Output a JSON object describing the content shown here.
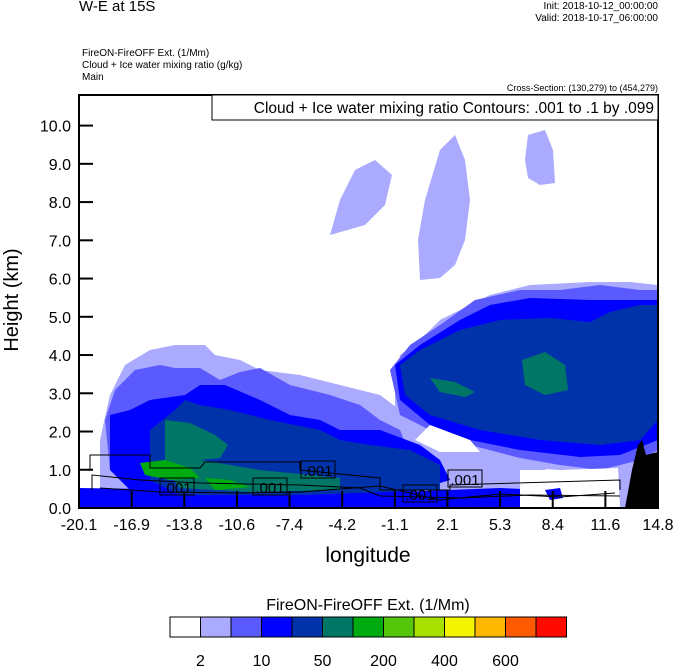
{
  "header": {
    "title": "W-E at 15S",
    "init": "Init: 2018-10-12_00:00:00",
    "valid": "Valid: 2018-10-17_06:00:00",
    "subtitle_lines": [
      "FireON-FireOFF Ext.   (1/Mm)",
      "Cloud + Ice water mixing ratio   (g/kg)",
      "Main"
    ],
    "cross_section": "Cross-Section: (130,279) to (454,279)"
  },
  "chart_data": {
    "type": "heatmap",
    "title": "W-E at 15S",
    "xlabel": "longitude",
    "ylabel": "Height (km)",
    "xlim": [
      -20.1,
      14.8
    ],
    "ylim": [
      0,
      10.8
    ],
    "x_ticks": [
      "-20.1",
      "-16.9",
      "-13.8",
      "-10.6",
      "-7.4",
      "-4.2",
      "-1.1",
      "2.1",
      "5.3",
      "8.4",
      "11.6",
      "14.8"
    ],
    "y_ticks": [
      "0.0",
      "1.0",
      "2.0",
      "3.0",
      "4.0",
      "5.0",
      "6.0",
      "7.0",
      "8.0",
      "9.0",
      "10.0"
    ],
    "contour_info": "Cloud + Ice water mixing ratio Contours: .001 to .1 by .099",
    "contour_labels": [
      ".001",
      ".001",
      ".001",
      ".001",
      ".001"
    ],
    "colorbar": {
      "title": "FireON-FireOFF Ext.  (1/Mm)",
      "labels": [
        "2",
        "10",
        "50",
        "200",
        "400",
        "600"
      ],
      "colors": [
        "#ffffff",
        "#aaaaff",
        "#5a5aff",
        "#0000ff",
        "#0033aa",
        "#007766",
        "#00aa11",
        "#55c60a",
        "#a8e000",
        "#f4f400",
        "#ffb800",
        "#ff5a00",
        "#ff0a00"
      ]
    },
    "terrain_color": "#000000"
  }
}
